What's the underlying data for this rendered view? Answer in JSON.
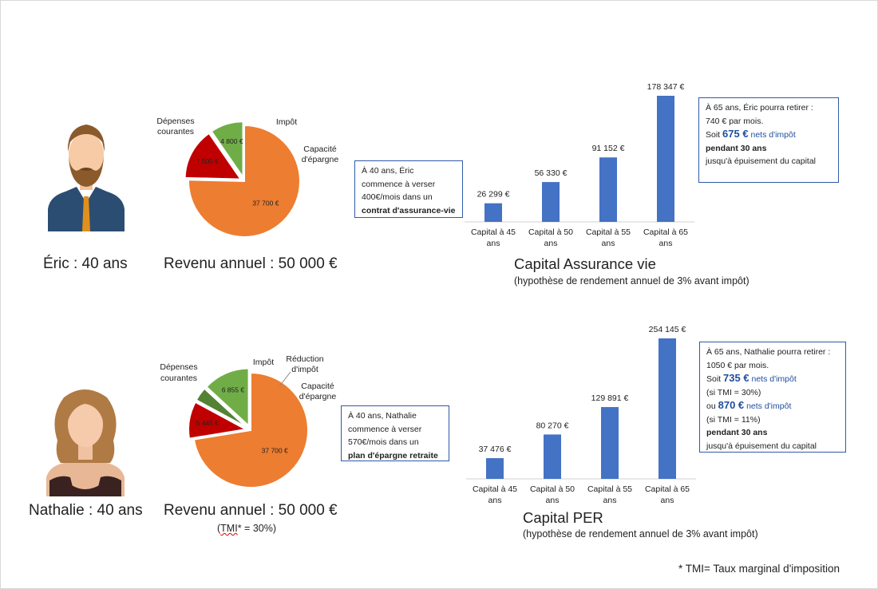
{
  "persons": [
    {
      "name": "Éric : 40 ans",
      "revenue": "Revenu annuel : 50 000 €",
      "tmi": "",
      "pie": {
        "labels": {
          "depenses": "Dépenses courantes",
          "impot": "Impôt",
          "capacite": "Capacité d'épargne"
        },
        "slices": [
          {
            "label": "Dépenses courantes",
            "value": 37700,
            "text": "37 700 €",
            "color": "#ed7d31"
          },
          {
            "label": "Impôt",
            "value": 7500,
            "text": "7 500 €",
            "color": "#c00000"
          },
          {
            "label": "Capacité d'épargne",
            "value": 4800,
            "text": "4 800 €",
            "color": "#70ad47"
          }
        ]
      },
      "note": {
        "line1": "À 40 ans, Éric",
        "line2": "commence à verser",
        "line3": "400€/mois dans un",
        "line4": "contrat d'assurance-vie"
      },
      "result": {
        "line1": "À 65 ans, Éric pourra retirer :",
        "line2": "740 € par mois.",
        "soit": "Soit",
        "amount": "675 €",
        "nets": "nets d'impôt",
        "line4": "pendant 30 ans",
        "line5": "jusqu'à épuisement du capital"
      }
    },
    {
      "name": "Nathalie : 40 ans",
      "revenue": "Revenu annuel : 50 000 €",
      "tmi": "(TMI* = 30%)",
      "pie": {
        "labels": {
          "depenses": "Dépenses courantes",
          "impot": "Impôt",
          "reduction": "Réduction d'impôt",
          "capacite": "Capacité d'épargne"
        },
        "slices": [
          {
            "label": "Dépenses courantes",
            "value": 37700,
            "text": "37 700 €",
            "color": "#ed7d31"
          },
          {
            "label": "Impôt",
            "value": 5445,
            "text": "5 445 €",
            "color": "#c00000"
          },
          {
            "label": "Réduction d'impôt",
            "value": 2055,
            "text": "",
            "color": "#548235"
          },
          {
            "label": "Capacité d'épargne",
            "value": 6855,
            "text": "6 855 €",
            "color": "#70ad47"
          }
        ]
      },
      "note": {
        "line1": "À 40 ans, Nathalie",
        "line2": "commence à verser",
        "line3": "570€/mois  dans un",
        "line4": "plan d'épargne retraite"
      },
      "result": {
        "line1": "À 65 ans, Nathalie pourra retirer :",
        "line2": "1050 € par mois.",
        "soit": "Soit",
        "amount1": "735 €",
        "nets1": "nets d'impôt",
        "tmi1": "(si TMI = 30%)",
        "ou": "ou",
        "amount2": "870 €",
        "nets2": "nets d'impôt",
        "tmi2": "(si TMI = 11%)",
        "line6": "pendant 30 ans",
        "line7": "jusqu'à épuisement du capital"
      }
    }
  ],
  "chart_data": [
    {
      "type": "bar",
      "title": "Capital Assurance vie",
      "subtitle": "(hypothèse de rendement annuel de 3% avant impôt)",
      "categories": [
        "Capital à 45 ans",
        "Capital à 50 ans",
        "Capital à 55 ans",
        "Capital à 65 ans"
      ],
      "values": [
        26299,
        56330,
        91152,
        178347
      ],
      "value_labels": [
        "26 299 €",
        "56 330 €",
        "91 152 €",
        "178 347 €"
      ],
      "color": "#4472c4",
      "ylim": [
        0,
        178347
      ],
      "grid": false,
      "legend": "none"
    },
    {
      "type": "bar",
      "title": "Capital PER",
      "subtitle": "(hypothèse de rendement annuel de 3% avant impôt)",
      "categories": [
        "Capital à 45 ans",
        "Capital à 50 ans",
        "Capital à 55 ans",
        "Capital à 65 ans"
      ],
      "values": [
        37476,
        80270,
        129891,
        254145
      ],
      "value_labels": [
        "37 476 €",
        "80 270 €",
        "129 891 €",
        "254 145 €"
      ],
      "color": "#4472c4",
      "ylim": [
        0,
        254145
      ],
      "grid": false,
      "legend": "none"
    }
  ],
  "footnote": "* TMI= Taux marginal d'imposition",
  "colors": {
    "accent": "#4472c4",
    "note_border": "#2e5aa8",
    "highlight": "#1f4e9e"
  },
  "icons": {
    "eric": "man-avatar-icon",
    "nathalie": "woman-avatar-icon"
  }
}
